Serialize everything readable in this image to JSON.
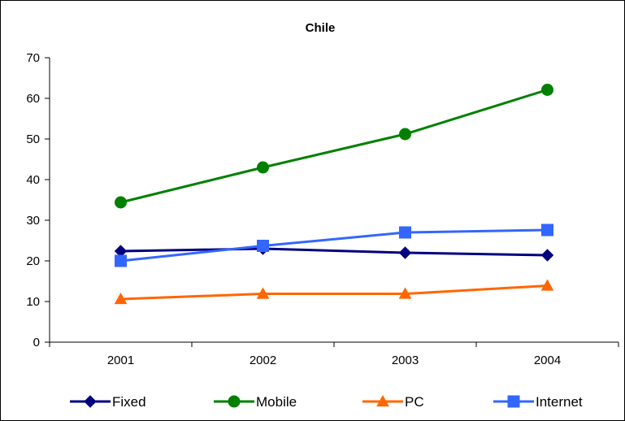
{
  "chart_data": {
    "type": "line",
    "title": "Chile",
    "xlabel": "",
    "ylabel": "",
    "categories": [
      "2001",
      "2002",
      "2003",
      "2004"
    ],
    "ylim": [
      0,
      70
    ],
    "yticks": [
      "0",
      "10",
      "20",
      "30",
      "40",
      "50",
      "60",
      "70"
    ],
    "grid": false,
    "legend_position": "bottom",
    "series": [
      {
        "name": "Fixed",
        "values": [
          22.4,
          23.0,
          22.0,
          21.4
        ],
        "color": "#000080",
        "marker": "diamond"
      },
      {
        "name": "Mobile",
        "values": [
          34.4,
          43.0,
          51.2,
          62.1
        ],
        "color": "#008000",
        "marker": "circle"
      },
      {
        "name": "PC",
        "values": [
          10.6,
          11.9,
          11.9,
          13.9
        ],
        "color": "#FF6600",
        "marker": "triangle"
      },
      {
        "name": "Internet",
        "values": [
          20.0,
          23.7,
          27.0,
          27.6
        ],
        "color": "#3366FF",
        "marker": "square"
      }
    ]
  }
}
